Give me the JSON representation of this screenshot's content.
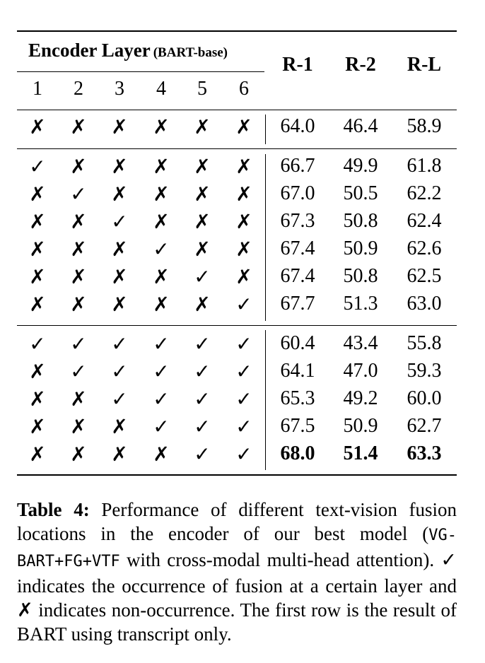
{
  "header": {
    "group_title": "Encoder Layer",
    "group_sub": "(BART-base)",
    "layers": [
      "1",
      "2",
      "3",
      "4",
      "5",
      "6"
    ],
    "metrics": [
      "R-1",
      "R-2",
      "R-L"
    ]
  },
  "rows": [
    {
      "fusion": [
        false,
        false,
        false,
        false,
        false,
        false
      ],
      "scores": [
        "64.0",
        "46.4",
        "58.9"
      ],
      "bold": false
    },
    {
      "fusion": [
        true,
        false,
        false,
        false,
        false,
        false
      ],
      "scores": [
        "66.7",
        "49.9",
        "61.8"
      ],
      "bold": false
    },
    {
      "fusion": [
        false,
        true,
        false,
        false,
        false,
        false
      ],
      "scores": [
        "67.0",
        "50.5",
        "62.2"
      ],
      "bold": false
    },
    {
      "fusion": [
        false,
        false,
        true,
        false,
        false,
        false
      ],
      "scores": [
        "67.3",
        "50.8",
        "62.4"
      ],
      "bold": false
    },
    {
      "fusion": [
        false,
        false,
        false,
        true,
        false,
        false
      ],
      "scores": [
        "67.4",
        "50.9",
        "62.6"
      ],
      "bold": false
    },
    {
      "fusion": [
        false,
        false,
        false,
        false,
        true,
        false
      ],
      "scores": [
        "67.4",
        "50.8",
        "62.5"
      ],
      "bold": false
    },
    {
      "fusion": [
        false,
        false,
        false,
        false,
        false,
        true
      ],
      "scores": [
        "67.7",
        "51.3",
        "63.0"
      ],
      "bold": false
    },
    {
      "fusion": [
        true,
        true,
        true,
        true,
        true,
        true
      ],
      "scores": [
        "60.4",
        "43.4",
        "55.8"
      ],
      "bold": false
    },
    {
      "fusion": [
        false,
        true,
        true,
        true,
        true,
        true
      ],
      "scores": [
        "64.1",
        "47.0",
        "59.3"
      ],
      "bold": false
    },
    {
      "fusion": [
        false,
        false,
        true,
        true,
        true,
        true
      ],
      "scores": [
        "65.3",
        "49.2",
        "60.0"
      ],
      "bold": false
    },
    {
      "fusion": [
        false,
        false,
        false,
        true,
        true,
        true
      ],
      "scores": [
        "67.5",
        "50.9",
        "62.7"
      ],
      "bold": false
    },
    {
      "fusion": [
        false,
        false,
        false,
        false,
        true,
        true
      ],
      "scores": [
        "68.0",
        "51.4",
        "63.3"
      ],
      "bold": true
    }
  ],
  "marks": {
    "yes": "✓",
    "no": "✗"
  },
  "caption": {
    "label": "Table 4:",
    "text1": "Performance of different text-vision fusion locations in the encoder of our best model (",
    "model": "VG-BART+FG+VTF",
    "text2": " with cross-modal multi-head attention). ",
    "text3": " indicates the occurrence of fusion at a certain layer and ",
    "text4": " indicates non-occurrence. The first row is the result of BART using transcript only."
  }
}
